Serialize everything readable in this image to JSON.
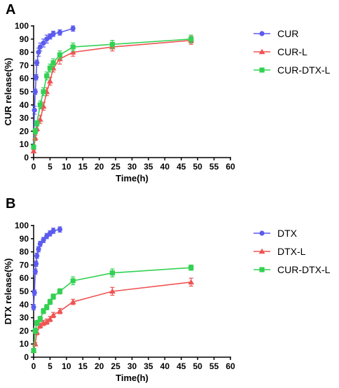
{
  "chart_data": [
    {
      "type": "line",
      "panel_label": "A",
      "xlabel": "Time(h)",
      "ylabel": "CUR release(%)",
      "xlim": [
        0,
        60
      ],
      "ylim": [
        0,
        100
      ],
      "xticks": [
        0,
        5,
        10,
        15,
        20,
        25,
        30,
        35,
        40,
        45,
        50,
        55,
        60
      ],
      "yticks": [
        0,
        10,
        20,
        30,
        40,
        50,
        60,
        70,
        80,
        90,
        100
      ],
      "grid": false,
      "legend_position": "right",
      "series": [
        {
          "name": "CUR",
          "color": "#5b5bef",
          "marker": "circle",
          "x": [
            0,
            0.25,
            0.5,
            0.75,
            1,
            1.5,
            2,
            3,
            4,
            5,
            6,
            8,
            12
          ],
          "y": [
            8,
            36,
            50,
            61,
            72,
            80,
            84,
            87,
            90,
            92,
            94,
            95,
            98
          ],
          "err": [
            1,
            3,
            2,
            2,
            2,
            3,
            3,
            3,
            3,
            2,
            2,
            2,
            2
          ]
        },
        {
          "name": "CUR-L",
          "color": "#ef5353",
          "marker": "triangle",
          "x": [
            0,
            0.5,
            1,
            2,
            3,
            4,
            5,
            6,
            8,
            12,
            24,
            48
          ],
          "y": [
            5,
            15,
            22,
            29,
            39,
            50,
            58,
            68,
            75,
            80,
            84,
            89
          ],
          "err": [
            1,
            2,
            2,
            3,
            3,
            3,
            3,
            3,
            4,
            3,
            3,
            3
          ]
        },
        {
          "name": "CUR-DTX-L",
          "color": "#33d153",
          "marker": "square",
          "x": [
            0,
            0.5,
            1,
            2,
            3,
            4,
            5,
            6,
            8,
            12,
            24,
            48
          ],
          "y": [
            8,
            20,
            26,
            40,
            50,
            62,
            68,
            72,
            78,
            84,
            86,
            90
          ],
          "err": [
            1,
            2,
            2,
            3,
            3,
            3,
            3,
            3,
            3,
            3,
            3,
            3
          ]
        }
      ]
    },
    {
      "type": "line",
      "panel_label": "B",
      "xlabel": "Time(h)",
      "ylabel": "DTX release(%)",
      "xlim": [
        0,
        60
      ],
      "ylim": [
        0,
        100
      ],
      "xticks": [
        0,
        5,
        10,
        15,
        20,
        25,
        30,
        35,
        40,
        45,
        50,
        55,
        60
      ],
      "yticks": [
        0,
        10,
        20,
        30,
        40,
        50,
        60,
        70,
        80,
        90,
        100
      ],
      "grid": false,
      "legend_position": "right",
      "series": [
        {
          "name": "DTX",
          "color": "#5b5bef",
          "marker": "circle",
          "x": [
            0,
            0.25,
            0.5,
            0.75,
            1,
            1.5,
            2,
            3,
            4,
            5,
            6,
            8
          ],
          "y": [
            38,
            49,
            65,
            71,
            77,
            82,
            86,
            89,
            92,
            94,
            96,
            97
          ],
          "err": [
            2,
            2,
            2,
            2,
            2,
            2,
            2,
            2,
            2,
            2,
            2,
            2
          ]
        },
        {
          "name": "DTX-L",
          "color": "#ef5353",
          "marker": "triangle",
          "x": [
            0,
            0.5,
            1,
            2,
            3,
            4,
            5,
            6,
            8,
            12,
            24,
            48
          ],
          "y": [
            5,
            10,
            19,
            24,
            26,
            27,
            29,
            32,
            35,
            42,
            50,
            57
          ],
          "err": [
            1,
            1,
            2,
            2,
            2,
            2,
            2,
            2,
            2,
            2,
            3,
            3
          ]
        },
        {
          "name": "CUR-DTX-L",
          "color": "#33d153",
          "marker": "square",
          "x": [
            0,
            0.5,
            1,
            2,
            3,
            4,
            5,
            6,
            8,
            12,
            24,
            48
          ],
          "y": [
            5,
            20,
            26,
            29,
            35,
            38,
            42,
            46,
            50,
            58,
            64,
            68
          ],
          "err": [
            1,
            2,
            2,
            2,
            2,
            2,
            2,
            2,
            2,
            3,
            3,
            2
          ]
        }
      ]
    }
  ]
}
